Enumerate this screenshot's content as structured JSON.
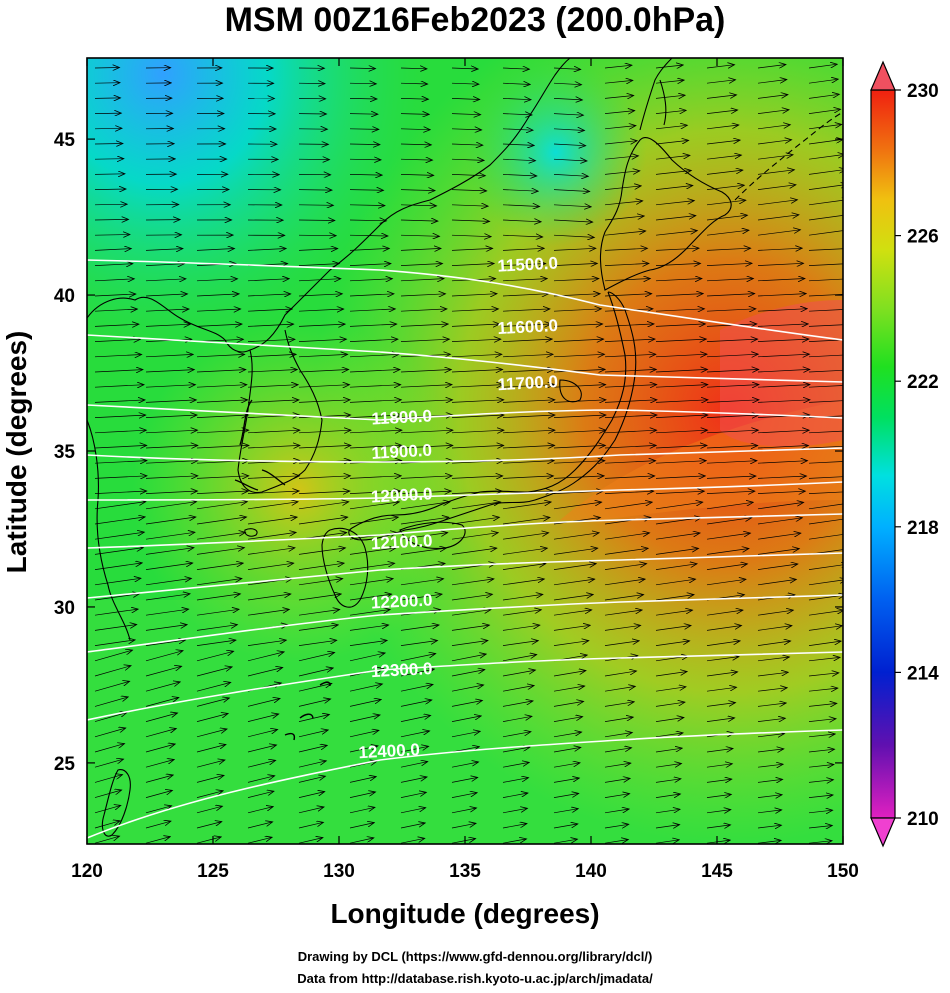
{
  "title": "MSM 00Z16Feb2023 (200.0hPa)",
  "map": {
    "x_axis_title": "Longitude (degrees)",
    "y_axis_title": "Latitude  (degrees)",
    "lon_range": [
      120,
      150
    ],
    "lat_range": [
      22.4,
      47.6
    ],
    "lon_ticks": [
      "120",
      "125",
      "130",
      "135",
      "140",
      "145",
      "150"
    ],
    "lat_ticks": [
      "25",
      "30",
      "35",
      "40",
      "45"
    ],
    "lon_tick_values": [
      120,
      125,
      130,
      135,
      140,
      145,
      150
    ],
    "lat_tick_values": [
      25,
      30,
      35,
      40,
      45
    ],
    "contour_color": "#ffffff",
    "contour_labels": [
      {
        "text": "11500.0",
        "lon": 137.5,
        "lat": 40.8
      },
      {
        "text": "11600.0",
        "lon": 137.5,
        "lat": 38.8
      },
      {
        "text": "11700.0",
        "lon": 137.5,
        "lat": 37.0
      },
      {
        "text": "11800.0",
        "lon": 132.5,
        "lat": 35.9
      },
      {
        "text": "11900.0",
        "lon": 132.5,
        "lat": 34.8
      },
      {
        "text": "12000.0",
        "lon": 132.5,
        "lat": 33.4
      },
      {
        "text": "12100.0",
        "lon": 132.5,
        "lat": 31.9
      },
      {
        "text": "12200.0",
        "lon": 132.5,
        "lat": 30.0
      },
      {
        "text": "12300.0",
        "lon": 132.5,
        "lat": 27.8
      },
      {
        "text": "12400.0",
        "lon": 132.0,
        "lat": 25.2
      }
    ],
    "wind_vectors": "eastward jet, strongest over Japan",
    "coastline_color": "#000000"
  },
  "colorbar": {
    "ticks": [
      "230",
      "226",
      "222",
      "218",
      "214",
      "210"
    ],
    "range": [
      210,
      230
    ],
    "colors": [
      "#e020c0",
      "#6010b0",
      "#0020d0",
      "#0060f0",
      "#00b0ff",
      "#00e0e0",
      "#00e060",
      "#20e020",
      "#80e020",
      "#d0e010",
      "#f0c010",
      "#f07010",
      "#f02010",
      "#f05060"
    ]
  },
  "credits": {
    "line1": "Drawing by DCL (https://www.gfd-dennou.org/library/dcl/)",
    "line2": "Data from http://database.rish.kyoto-u.ac.jp/arch/jmadata/"
  }
}
